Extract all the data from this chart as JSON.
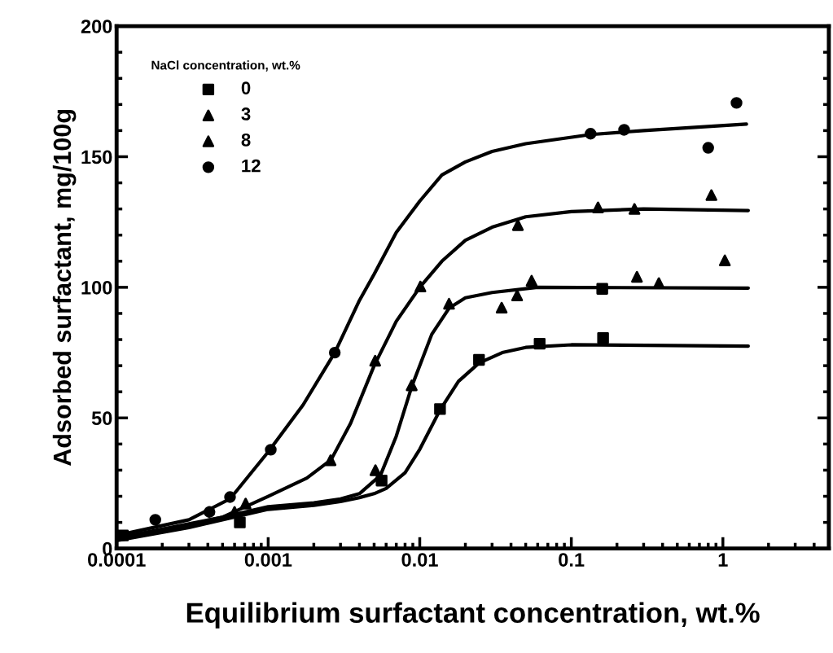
{
  "chart_data": {
    "type": "scatter",
    "xlabel": "Equilibrium surfactant concentration, wt.%",
    "ylabel": "Adsorbed surfactant, mg/100g",
    "legend_title": "NaCl concentration, wt.%",
    "legend": "top left",
    "log": "x",
    "grid": false,
    "xlim": [
      0.0001,
      5
    ],
    "xticks": [
      0.0001,
      0.001,
      0.01,
      0.1,
      1
    ],
    "ylim": [
      0,
      200
    ],
    "yticks": [
      0,
      50,
      100,
      150,
      200
    ],
    "series": [
      {
        "name": "0",
        "marker": "square",
        "color": "#000000",
        "x": [
          0.00011,
          0.00065,
          0.0056,
          0.0136,
          0.0246,
          0.0618,
          0.162,
          0.16
        ],
        "values": [
          5,
          10,
          26,
          53.4,
          72.2,
          78.4,
          80.6,
          99.4
        ]
      },
      {
        "name": "3",
        "marker": "triangle",
        "color": "#000000",
        "x": [
          0.0006,
          0.0051,
          0.00885,
          0.0156,
          0.0347,
          0.0439,
          0.0547,
          0.271,
          0.378,
          1.03
        ],
        "values": [
          14,
          30,
          62.5,
          93.7,
          92.2,
          96.9,
          102.5,
          104,
          101.6,
          110.3
        ]
      },
      {
        "name": "8",
        "marker": "triangle",
        "color": "#000000",
        "x": [
          0.00071,
          0.00258,
          0.00508,
          0.0101,
          0.0444,
          0.15,
          0.261,
          0.84
        ],
        "values": [
          17.2,
          33.8,
          71.9,
          100.3,
          123.8,
          130.6,
          130,
          135.3
        ]
      },
      {
        "name": "12",
        "marker": "circle",
        "color": "#000000",
        "x": [
          0.00018,
          0.00041,
          0.00056,
          0.00104,
          0.00275,
          0.134,
          0.223,
          0.8,
          1.23
        ],
        "values": [
          11,
          14,
          19.7,
          37.8,
          75,
          158.8,
          160.3,
          153.4,
          170.6
        ]
      },
      {
        "type": "line",
        "color": "#000000",
        "x": [
          0.0001,
          0.0003,
          0.001,
          0.002,
          0.003,
          0.004,
          0.005,
          0.006,
          0.008,
          0.01,
          0.0136,
          0.018,
          0.0246,
          0.035,
          0.05,
          0.1,
          1.47
        ],
        "values": [
          3,
          8,
          15,
          16.5,
          18,
          19.5,
          21,
          23,
          29,
          38,
          53,
          64,
          71,
          75,
          77,
          78,
          77.5
        ]
      },
      {
        "type": "line",
        "color": "#000000",
        "x": [
          0.0001,
          0.0003,
          0.001,
          0.002,
          0.003,
          0.004,
          0.0055,
          0.007,
          0.00885,
          0.012,
          0.0156,
          0.02,
          0.03,
          0.06,
          1.47
        ],
        "values": [
          4,
          9,
          16,
          17.5,
          19,
          21,
          28,
          43,
          62,
          82,
          92,
          96,
          98,
          100,
          99.7
        ]
      },
      {
        "type": "line",
        "color": "#000000",
        "x": [
          0.0001,
          0.0005,
          0.001,
          0.0018,
          0.0026,
          0.0035,
          0.005,
          0.007,
          0.01,
          0.014,
          0.02,
          0.03,
          0.05,
          0.1,
          0.3,
          1.47
        ],
        "values": [
          4,
          12,
          20,
          27,
          34,
          48,
          70,
          87,
          100,
          110,
          118,
          123,
          127,
          129,
          130,
          129.4
        ]
      },
      {
        "type": "line",
        "color": "#000000",
        "x": [
          0.0001,
          0.0003,
          0.00056,
          0.001,
          0.0017,
          0.00275,
          0.004,
          0.005,
          0.007,
          0.01,
          0.014,
          0.02,
          0.03,
          0.05,
          0.134,
          0.3,
          1.43
        ],
        "values": [
          5,
          11,
          19,
          37,
          55,
          75,
          95,
          105,
          121,
          133,
          143,
          148,
          152,
          155,
          158.5,
          160,
          162.5
        ]
      }
    ]
  }
}
